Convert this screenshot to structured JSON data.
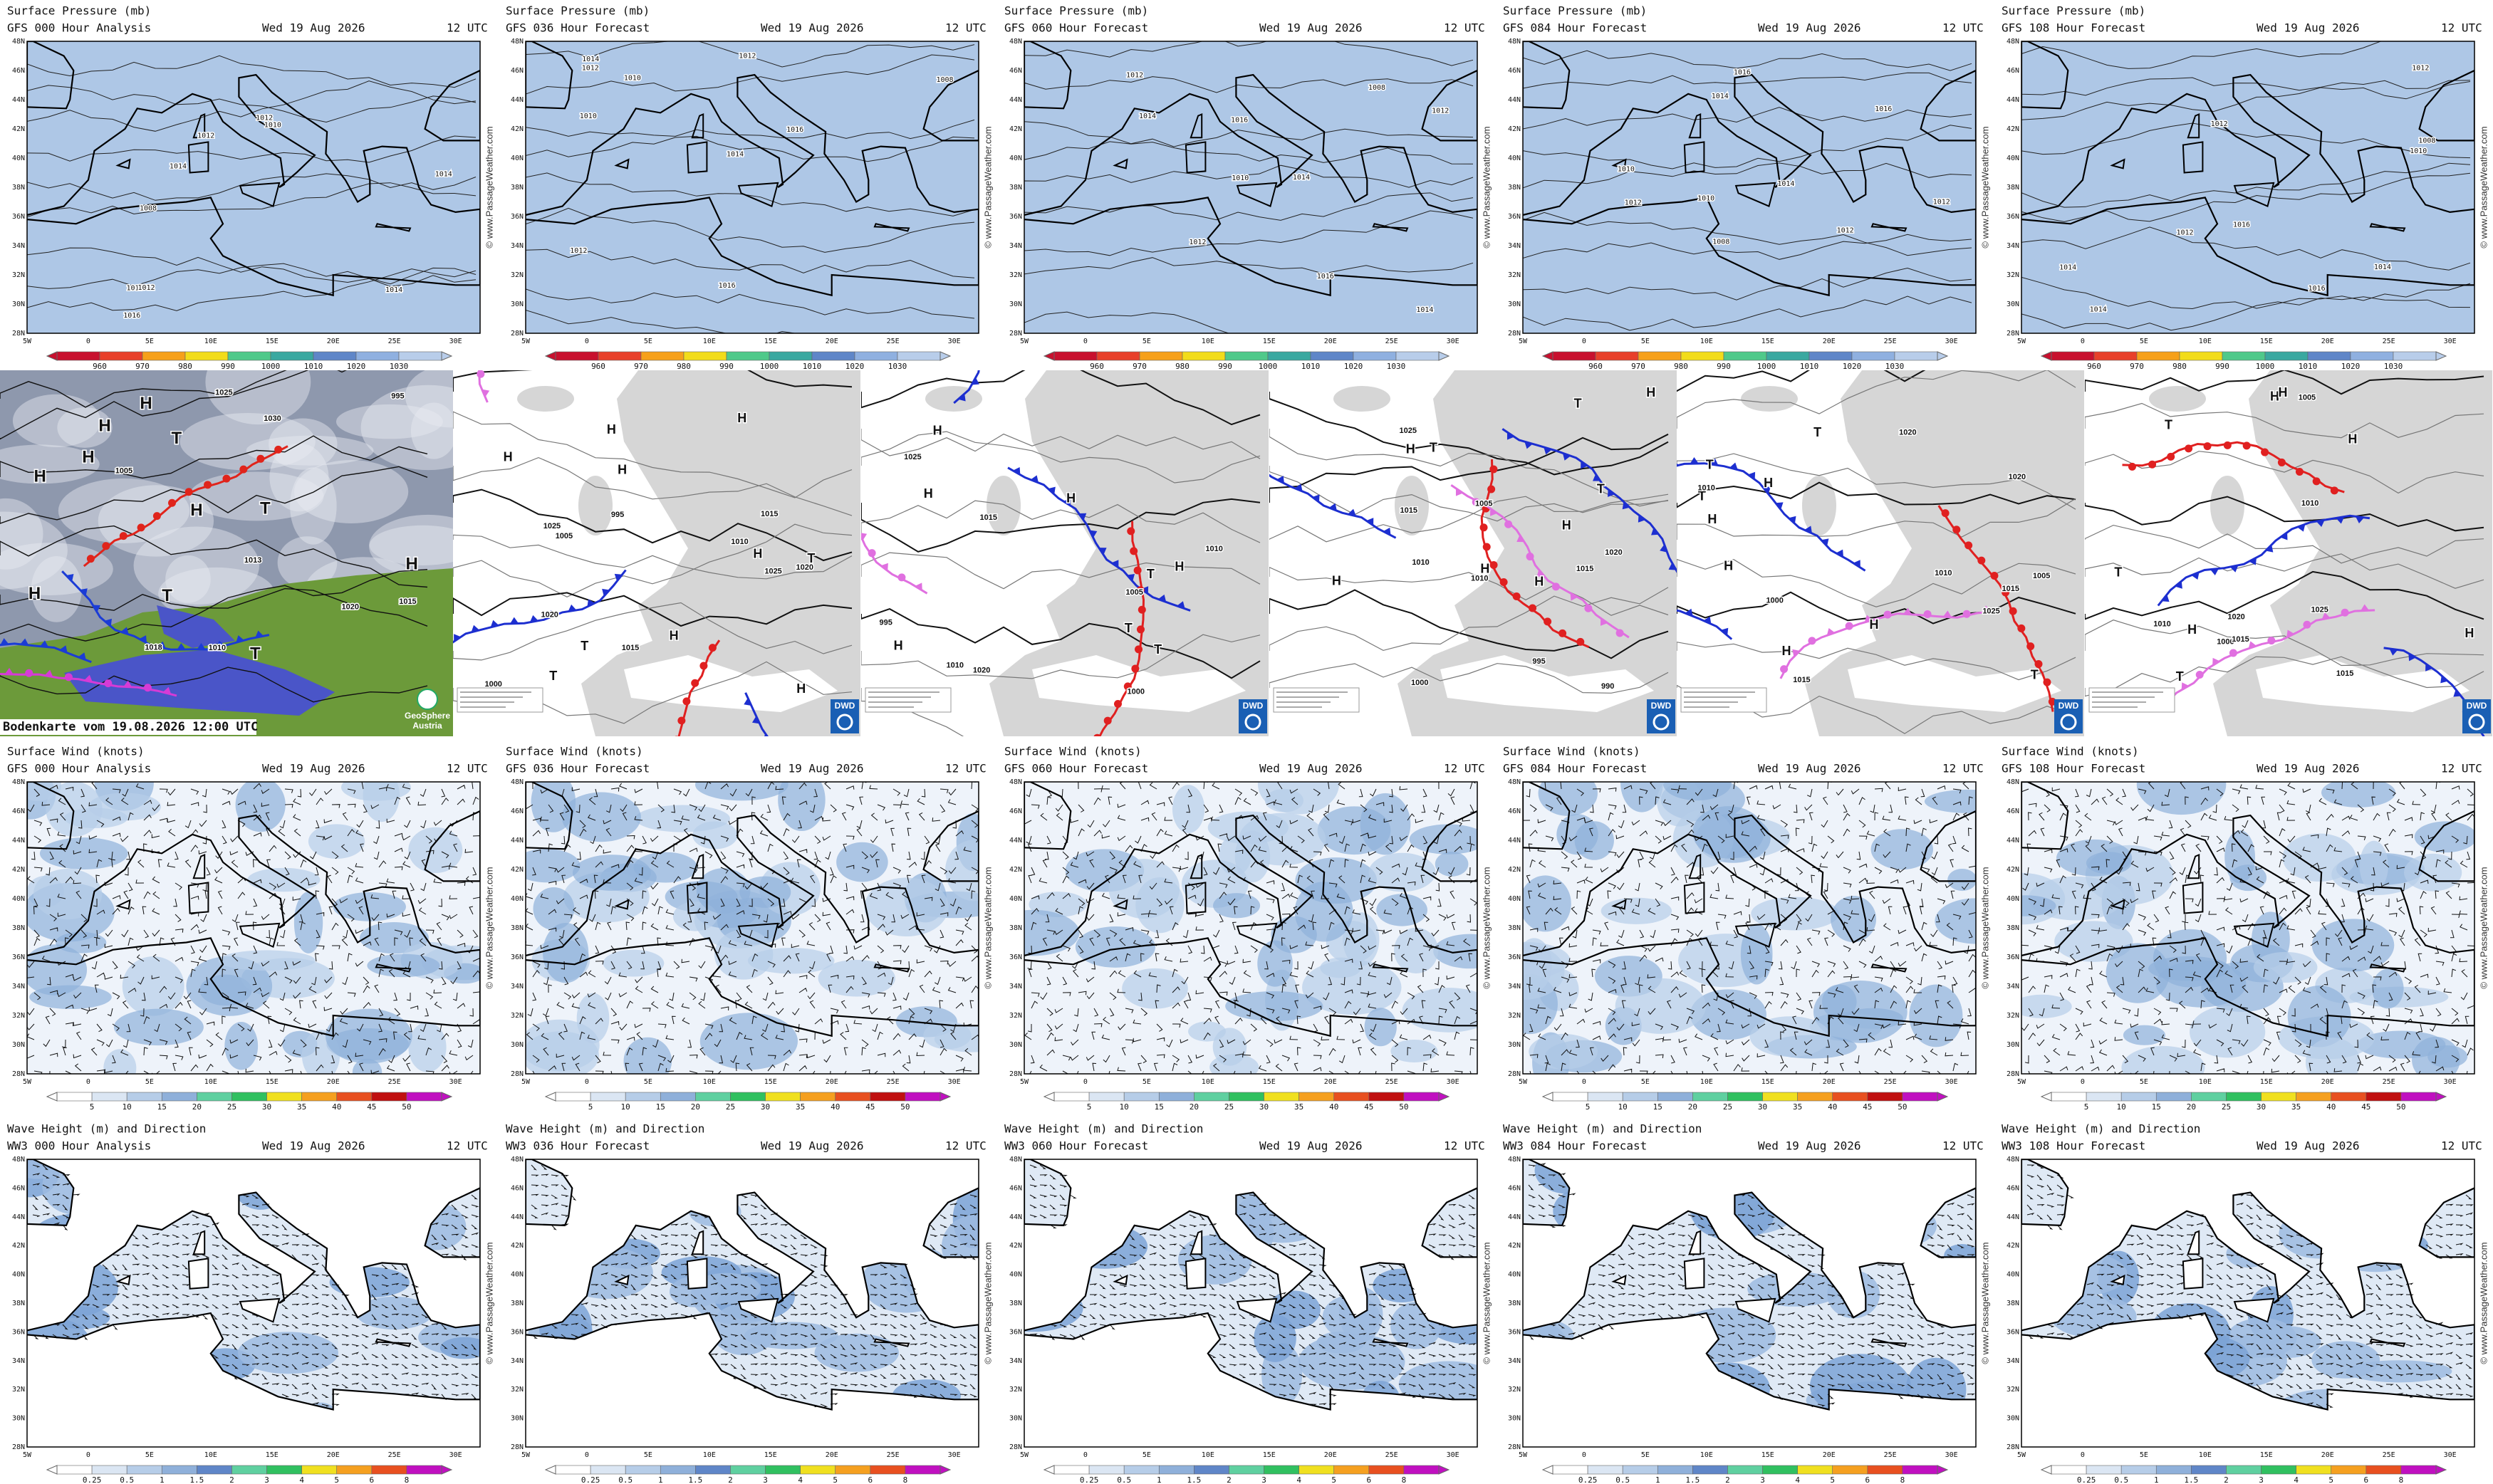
{
  "watermark": "© www.PassageWeather.com",
  "axes": {
    "lat": [
      "48N",
      "46N",
      "44N",
      "42N",
      "40N",
      "38N",
      "36N",
      "34N",
      "32N",
      "30N",
      "28N"
    ],
    "lon": [
      "5W",
      "0",
      "5E",
      "10E",
      "15E",
      "20E",
      "25E",
      "30E"
    ]
  },
  "pressure_maps": {
    "title": "Surface Pressure (mb)",
    "panels": [
      {
        "model": "GFS 000 Hour Analysis",
        "date": "Wed 19 Aug 2026",
        "time": "12 UTC",
        "isobar_labels": [
          1012,
          1014,
          1016,
          1010,
          1012,
          1014,
          1008,
          1012,
          1016,
          1014
        ]
      },
      {
        "model": "GFS 036 Hour Forecast",
        "date": "Wed 19 Aug 2026",
        "time": "12 UTC",
        "isobar_labels": [
          1014,
          1016,
          1012,
          1010,
          1008,
          1012,
          1014,
          1016,
          1012,
          1010
        ]
      },
      {
        "model": "GFS 060 Hour Forecast",
        "date": "Wed 19 Aug 2026",
        "time": "12 UTC",
        "isobar_labels": [
          1016,
          1014,
          1012,
          1010,
          1012,
          1014,
          1008,
          1016,
          1012,
          1014
        ]
      },
      {
        "model": "GFS 084 Hour Forecast",
        "date": "Wed 19 Aug 2026",
        "time": "12 UTC",
        "isobar_labels": [
          1014,
          1012,
          1016,
          1010,
          1012,
          1008,
          1014,
          1016,
          1012,
          1010
        ]
      },
      {
        "model": "GFS 108 Hour Forecast",
        "date": "Wed 19 Aug 2026",
        "time": "12 UTC",
        "isobar_labels": [
          1012,
          1016,
          1014,
          1010,
          1012,
          1014,
          1008,
          1012,
          1016,
          1014
        ]
      }
    ],
    "colorbar": {
      "labels": [
        960,
        970,
        980,
        990,
        1000,
        1010,
        1020,
        1030
      ],
      "colors": [
        "#c8102e",
        "#e8402a",
        "#f6a01a",
        "#f2dc1a",
        "#4fc98a",
        "#3aa8a0",
        "#5f86c8",
        "#8fb0e0",
        "#b8cdea"
      ]
    }
  },
  "analysis_maps": {
    "satellite": {
      "caption": "Bodenkarte vom 19.08.2026 12:00 UTC",
      "logo": [
        "GeoSphere",
        "Austria"
      ],
      "centres": [
        "H",
        "H",
        "T",
        "T",
        "T",
        "H",
        "H",
        "T",
        "H",
        "H",
        "H"
      ],
      "isobar_labels": [
        1030,
        1025,
        1015,
        1010,
        1005,
        995,
        1018,
        1020,
        1013
      ]
    },
    "dwd": [
      {
        "logo": "DWD",
        "centres": [
          "H",
          "H",
          "T",
          "T",
          "H",
          "H",
          "H",
          "T",
          "H",
          "H"
        ],
        "isobar_labels": [
          1015,
          1020,
          1025,
          1010,
          1005,
          1000,
          995,
          1025,
          1015,
          1020
        ]
      },
      {
        "logo": "DWD",
        "centres": [
          "H",
          "T",
          "H",
          "T",
          "H",
          "T",
          "H",
          "H"
        ],
        "isobar_labels": [
          1015,
          1025,
          1005,
          1000,
          995,
          1010,
          1020,
          1010
        ]
      },
      {
        "logo": "DWD",
        "centres": [
          "H",
          "H",
          "T",
          "H",
          "T",
          "H",
          "T",
          "H",
          "H"
        ],
        "isobar_labels": [
          1010,
          1015,
          1025,
          1005,
          1000,
          1010,
          990,
          995,
          1020,
          1015
        ]
      },
      {
        "logo": "DWD",
        "centres": [
          "H",
          "H",
          "T",
          "H",
          "T",
          "H",
          "T",
          "T",
          "H"
        ],
        "isobar_labels": [
          1005,
          1010,
          1015,
          1020,
          1025,
          1000,
          1010,
          1015,
          1020
        ]
      },
      {
        "logo": "DWD",
        "centres": [
          "H",
          "H",
          "T",
          "H",
          "T",
          "H",
          "T",
          "H"
        ],
        "isobar_labels": [
          1005,
          1010,
          1015,
          1020,
          1025,
          1000,
          1015,
          1010
        ]
      }
    ]
  },
  "wind_maps": {
    "title": "Surface Wind (knots)",
    "panels": [
      {
        "model": "GFS 000 Hour Analysis",
        "date": "Wed 19 Aug 2026",
        "time": "12 UTC"
      },
      {
        "model": "GFS 036 Hour Forecast",
        "date": "Wed 19 Aug 2026",
        "time": "12 UTC"
      },
      {
        "model": "GFS 060 Hour Forecast",
        "date": "Wed 19 Aug 2026",
        "time": "12 UTC"
      },
      {
        "model": "GFS 084 Hour Forecast",
        "date": "Wed 19 Aug 2026",
        "time": "12 UTC"
      },
      {
        "model": "GFS 108 Hour Forecast",
        "date": "Wed 19 Aug 2026",
        "time": "12 UTC"
      }
    ],
    "colorbar": {
      "labels": [
        5,
        10,
        15,
        20,
        25,
        30,
        35,
        40,
        45,
        50
      ],
      "colors": [
        "#ffffff",
        "#dbe6f3",
        "#b6cde8",
        "#8fb0da",
        "#5fd0a0",
        "#30c060",
        "#f0e020",
        "#f5a020",
        "#e85020",
        "#c01010",
        "#c010c0"
      ]
    }
  },
  "wave_maps": {
    "title": "Wave Height (m) and Direction",
    "panels": [
      {
        "model": "WW3 000 Hour Analysis",
        "date": "Wed 19 Aug 2026",
        "time": "12 UTC"
      },
      {
        "model": "WW3 036 Hour Forecast",
        "date": "Wed 19 Aug 2026",
        "time": "12 UTC"
      },
      {
        "model": "WW3 060 Hour Forecast",
        "date": "Wed 19 Aug 2026",
        "time": "12 UTC"
      },
      {
        "model": "WW3 084 Hour Forecast",
        "date": "Wed 19 Aug 2026",
        "time": "12 UTC"
      },
      {
        "model": "WW3 108 Hour Forecast",
        "date": "Wed 19 Aug 2026",
        "time": "12 UTC"
      }
    ],
    "colorbar": {
      "labels": [
        0.25,
        0.5,
        1,
        1.5,
        2,
        3,
        4,
        5,
        6,
        8
      ],
      "colors": [
        "#ffffff",
        "#dbe6f3",
        "#b6cde8",
        "#8fb0da",
        "#5f86c8",
        "#5fd0a0",
        "#30c060",
        "#f0e020",
        "#f5a020",
        "#e85020",
        "#c010c0"
      ]
    }
  }
}
